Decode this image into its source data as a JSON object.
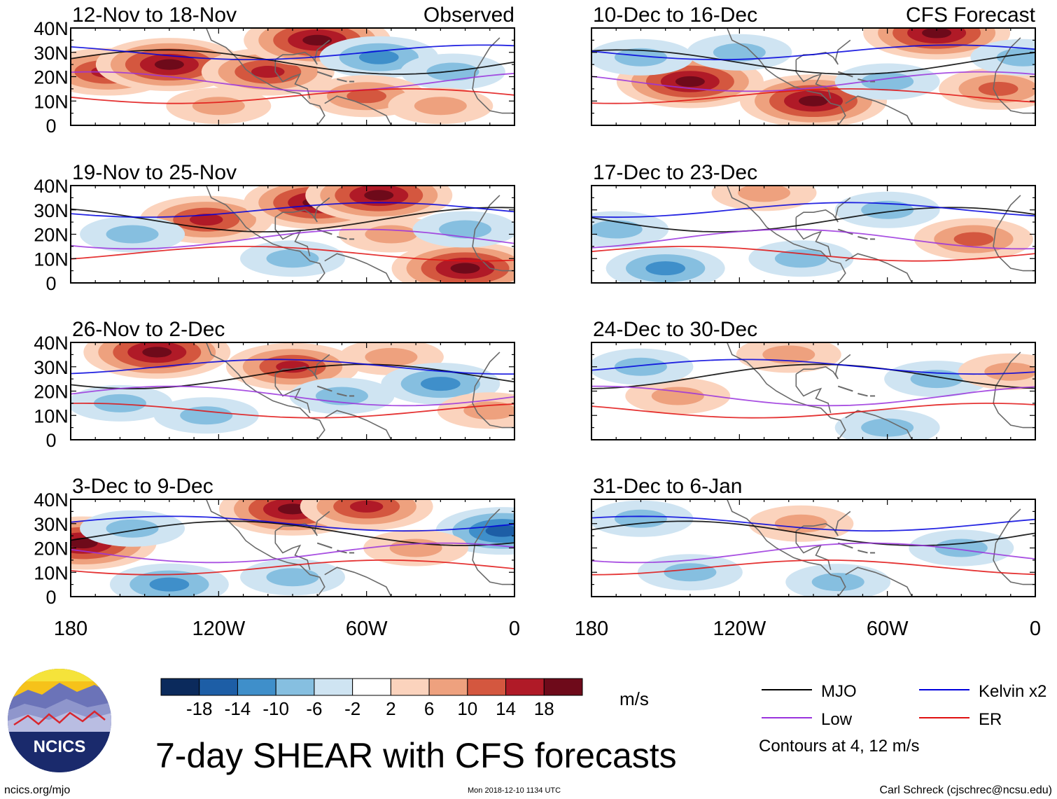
{
  "chart_data": {
    "type": "heatmap",
    "title": "7-day SHEAR with CFS forecasts",
    "units": "m/s",
    "yaxis": {
      "labels": [
        "40N",
        "30N",
        "20N",
        "10N",
        "0"
      ],
      "range": [
        0,
        40
      ]
    },
    "xaxis": {
      "labels": [
        "180",
        "120W",
        "60W",
        "0"
      ],
      "range": [
        -180,
        0
      ]
    },
    "columns": [
      "Observed",
      "CFS Forecast"
    ],
    "panels": [
      {
        "period": "12-Nov to 18-Nov",
        "tag": "Observed",
        "kind": "observed",
        "anomalies": [
          {
            "lon": -165,
            "lat": 22,
            "v": 14
          },
          {
            "lon": -140,
            "lat": 25,
            "v": 18
          },
          {
            "lon": -100,
            "lat": 22,
            "v": 14
          },
          {
            "lon": -80,
            "lat": 35,
            "v": 18
          },
          {
            "lon": -55,
            "lat": 28,
            "v": -10
          },
          {
            "lon": -25,
            "lat": 22,
            "v": -8
          },
          {
            "lon": -60,
            "lat": 12,
            "v": 12
          },
          {
            "lon": -120,
            "lat": 8,
            "v": 6
          },
          {
            "lon": -30,
            "lat": 8,
            "v": 8
          }
        ]
      },
      {
        "period": "10-Dec to 16-Dec",
        "tag": "CFS Forecast",
        "kind": "forecast",
        "anomalies": [
          {
            "lon": -140,
            "lat": 18,
            "v": 18
          },
          {
            "lon": -160,
            "lat": 28,
            "v": -8
          },
          {
            "lon": -90,
            "lat": 10,
            "v": 18
          },
          {
            "lon": -40,
            "lat": 38,
            "v": 18
          },
          {
            "lon": -60,
            "lat": 18,
            "v": -8
          },
          {
            "lon": -15,
            "lat": 15,
            "v": 10
          },
          {
            "lon": -120,
            "lat": 30,
            "v": -6
          },
          {
            "lon": -5,
            "lat": 28,
            "v": -8
          }
        ]
      },
      {
        "period": "19-Nov to 25-Nov",
        "tag": "",
        "kind": "observed",
        "anomalies": [
          {
            "lon": -125,
            "lat": 26,
            "v": 14
          },
          {
            "lon": -80,
            "lat": 33,
            "v": 18
          },
          {
            "lon": -55,
            "lat": 36,
            "v": 18
          },
          {
            "lon": -20,
            "lat": 6,
            "v": 18
          },
          {
            "lon": -50,
            "lat": 20,
            "v": 8
          },
          {
            "lon": -155,
            "lat": 20,
            "v": -6
          },
          {
            "lon": -90,
            "lat": 10,
            "v": -6
          },
          {
            "lon": -20,
            "lat": 22,
            "v": -6
          }
        ]
      },
      {
        "period": "17-Dec to 23-Dec",
        "tag": "",
        "kind": "forecast",
        "anomalies": [
          {
            "lon": -110,
            "lat": 37,
            "v": 8
          },
          {
            "lon": -25,
            "lat": 18,
            "v": 12
          },
          {
            "lon": -150,
            "lat": 6,
            "v": -10
          },
          {
            "lon": -60,
            "lat": 30,
            "v": -8
          },
          {
            "lon": -95,
            "lat": 10,
            "v": -8
          },
          {
            "lon": -170,
            "lat": 22,
            "v": -6
          }
        ]
      },
      {
        "period": "26-Nov to 2-Dec",
        "tag": "",
        "kind": "observed",
        "anomalies": [
          {
            "lon": -145,
            "lat": 36,
            "v": 18
          },
          {
            "lon": -90,
            "lat": 30,
            "v": 16
          },
          {
            "lon": -50,
            "lat": 34,
            "v": 8
          },
          {
            "lon": -160,
            "lat": 15,
            "v": -8
          },
          {
            "lon": -125,
            "lat": 10,
            "v": -8
          },
          {
            "lon": -30,
            "lat": 23,
            "v": -10
          },
          {
            "lon": -10,
            "lat": 12,
            "v": 8
          },
          {
            "lon": -70,
            "lat": 18,
            "v": -6
          }
        ]
      },
      {
        "period": "24-Dec to 30-Dec",
        "tag": "",
        "kind": "forecast",
        "anomalies": [
          {
            "lon": -145,
            "lat": 18,
            "v": 8
          },
          {
            "lon": -100,
            "lat": 35,
            "v": 8
          },
          {
            "lon": -60,
            "lat": 5,
            "v": -8
          },
          {
            "lon": -160,
            "lat": 30,
            "v": -6
          },
          {
            "lon": -40,
            "lat": 25,
            "v": -6
          },
          {
            "lon": -10,
            "lat": 28,
            "v": 6
          }
        ]
      },
      {
        "period": "3-Dec to 9-Dec",
        "tag": "",
        "kind": "observed",
        "anomalies": [
          {
            "lon": -175,
            "lat": 22,
            "v": 18
          },
          {
            "lon": -90,
            "lat": 36,
            "v": 18
          },
          {
            "lon": -60,
            "lat": 37,
            "v": 16
          },
          {
            "lon": -140,
            "lat": 5,
            "v": -10
          },
          {
            "lon": -90,
            "lat": 8,
            "v": -8
          },
          {
            "lon": -5,
            "lat": 27,
            "v": -14
          },
          {
            "lon": -40,
            "lat": 20,
            "v": 6
          },
          {
            "lon": -155,
            "lat": 28,
            "v": -6
          }
        ]
      },
      {
        "period": "31-Dec to 6-Jan",
        "tag": "",
        "kind": "forecast",
        "anomalies": [
          {
            "lon": -95,
            "lat": 30,
            "v": 6
          },
          {
            "lon": -140,
            "lat": 10,
            "v": -6
          },
          {
            "lon": -80,
            "lat": 6,
            "v": -8
          },
          {
            "lon": -30,
            "lat": 20,
            "v": -6
          },
          {
            "lon": -160,
            "lat": 32,
            "v": -6
          }
        ]
      }
    ],
    "colorbar": {
      "labels": [
        "-18",
        "-14",
        "-10",
        "-6",
        "-2",
        "2",
        "6",
        "10",
        "14",
        "18"
      ],
      "colors": [
        "#0b2a5c",
        "#1d5ea6",
        "#3f8fca",
        "#86bfe0",
        "#cfe4f2",
        "#ffffff",
        "#fbd3bd",
        "#eea17e",
        "#d4573f",
        "#b01a27",
        "#6e0a1a"
      ]
    },
    "legend": [
      {
        "label": "MJO",
        "color": "#000000"
      },
      {
        "label": "Kelvin x2",
        "color": "#0000dd"
      },
      {
        "label": "Low",
        "color": "#9a33dd"
      },
      {
        "label": "ER",
        "color": "#e01010"
      }
    ],
    "contour_note": "Contours at 4, 12 m/s"
  },
  "footer": {
    "left": "ncics.org/mjo",
    "center": "Mon 2018-12-10 1134 UTC",
    "right": "Carl Schreck (cjschrec@ncsu.edu)"
  },
  "logo": {
    "text": "NCICS"
  }
}
